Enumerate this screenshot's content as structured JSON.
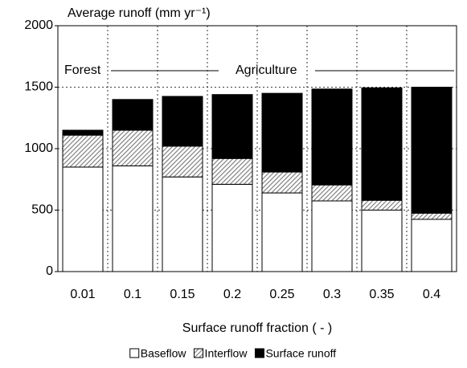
{
  "chart_data": {
    "type": "stacked_bar",
    "title": "Average runoff (mm yr⁻¹)",
    "x_label": "Surface runoff fraction ( - )",
    "categories": [
      "0.01",
      "0.1",
      "0.15",
      "0.2",
      "0.25",
      "0.3",
      "0.35",
      "0.4"
    ],
    "series": [
      {
        "name": "Baseflow",
        "color": "#ffffff",
        "values": [
          850,
          860,
          770,
          710,
          640,
          575,
          500,
          425
        ]
      },
      {
        "name": "Interflow",
        "color": "#808080",
        "values": [
          260,
          290,
          250,
          210,
          170,
          130,
          80,
          50
        ]
      },
      {
        "name": "Surface runoff",
        "color": "#000000",
        "values": [
          40,
          250,
          405,
          520,
          640,
          780,
          915,
          1025
        ]
      }
    ],
    "ylim": [
      0,
      2000
    ],
    "yticks": [
      0,
      500,
      1000,
      1500,
      2000
    ],
    "grid": true,
    "annotations": [
      "Forest",
      "Agriculture"
    ],
    "legend": "bottom"
  }
}
